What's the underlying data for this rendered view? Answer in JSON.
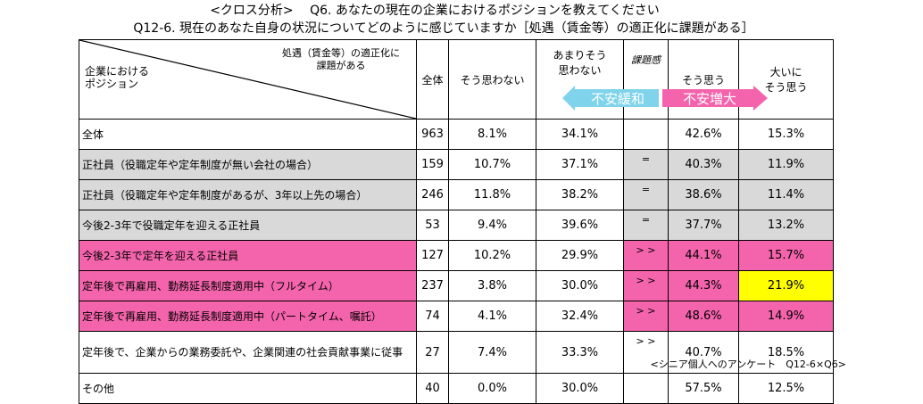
{
  "titles": {
    "line1": "<クロス分析>　 Q6. あなたの現在の企業におけるポジションを教えてください",
    "line2": "Q12-6. 現在のあなた自身の状況についてどのように感じていますか［処遇（賃金等）の適正化に課題がある］"
  },
  "header": {
    "corner_top_l1": "処遇（賃金等）の適正化に",
    "corner_top_l2": "課題がある",
    "corner_bottom_l1": "企業における",
    "corner_bottom_l2": "ポジション",
    "total": "全体",
    "col1": "そう思わない",
    "col2_l1": "あまりそう",
    "col2_l2": "思わない",
    "col3": "課題感",
    "col4": "そう思う",
    "col5_l1": "大いに",
    "col5_l2": "そう思う"
  },
  "arrows": {
    "left_label": "不安緩和",
    "right_label": "不安増大",
    "left_color": "#7fd3ea",
    "right_color": "#f464ac"
  },
  "chart_data": {
    "type": "table",
    "columns": [
      "全体",
      "そう思わない",
      "あまりそう思わない",
      "課題感",
      "そう思う",
      "大いにそう思う"
    ],
    "rows": [
      {
        "label": "全体",
        "n": "963",
        "v1": "8.1%",
        "v2": "34.1%",
        "cmp": "",
        "v3": "42.6%",
        "v4": "15.3%",
        "style": "none"
      },
      {
        "label": "正社員（役職定年や定年制度が無い会社の場合）",
        "n": "159",
        "v1": "10.7%",
        "v2": "37.1%",
        "cmp": "=",
        "v3": "40.3%",
        "v4": "11.9%",
        "style": "gray"
      },
      {
        "label": "正社員（役職定年や定年制度があるが、3年以上先の場合）",
        "n": "246",
        "v1": "11.8%",
        "v2": "38.2%",
        "cmp": "=",
        "v3": "38.6%",
        "v4": "11.4%",
        "style": "gray"
      },
      {
        "label": "今後2-3年で役職定年を迎える正社員",
        "n": "53",
        "v1": "9.4%",
        "v2": "39.6%",
        "cmp": "=",
        "v3": "37.7%",
        "v4": "13.2%",
        "style": "gray"
      },
      {
        "label": "今後2-3年で定年を迎える正社員",
        "n": "127",
        "v1": "10.2%",
        "v2": "29.9%",
        "cmp": "> >",
        "v3": "44.1%",
        "v4": "15.7%",
        "style": "pink"
      },
      {
        "label": "定年後で再雇用、勤務延長制度適用中（フルタイム）",
        "n": "237",
        "v1": "3.8%",
        "v2": "30.0%",
        "cmp": "> >",
        "v3": "44.3%",
        "v4": "21.9%",
        "style": "pink",
        "highlight": "yellow"
      },
      {
        "label": "定年後で再雇用、勤務延長制度適用中（パートタイム、嘱託）",
        "n": "74",
        "v1": "4.1%",
        "v2": "32.4%",
        "cmp": "> >",
        "v3": "48.6%",
        "v4": "14.9%",
        "style": "pink"
      },
      {
        "label": "定年後で、企業からの業務委託や、企業関連の社会貢献事業に従事",
        "n": "27",
        "v1": "7.4%",
        "v2": "33.3%",
        "cmp": "> >",
        "v3": "40.7%",
        "v4": "18.5%",
        "style": "none"
      },
      {
        "label": "その他",
        "n": "40",
        "v1": "0.0%",
        "v2": "30.0%",
        "cmp": "",
        "v3": "57.5%",
        "v4": "12.5%",
        "style": "none"
      }
    ]
  },
  "footnote": "<シニア個人へのアンケート　Q12-6×Q6>"
}
